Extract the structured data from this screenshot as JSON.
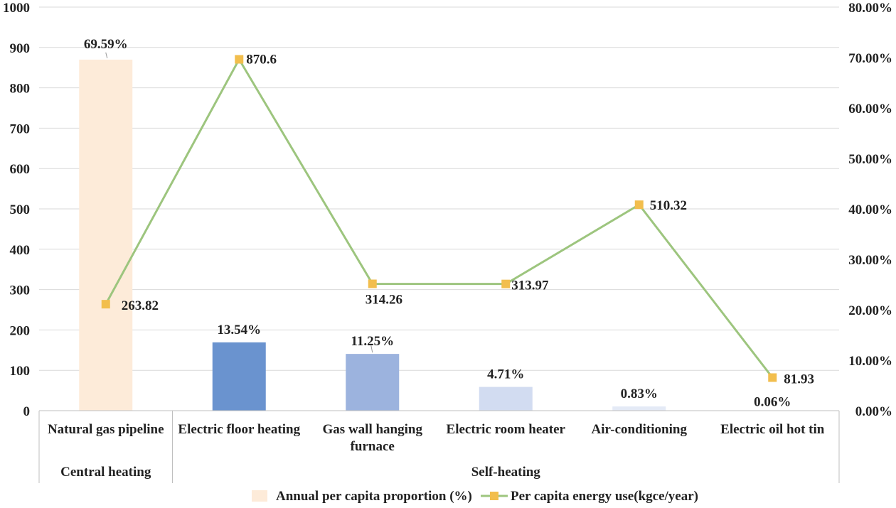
{
  "chart_data": {
    "type": "bar+line",
    "categories": [
      "Natural gas pipeline",
      "Electric floor heating",
      "Gas wall hanging furnace",
      "Electric room heater",
      "Air-conditioning",
      "Electric oil hot tin"
    ],
    "category_lines": [
      [
        "Natural gas pipeline"
      ],
      [
        "Electric floor heating"
      ],
      [
        "Gas wall hanging",
        "furnace"
      ],
      [
        "Electric room heater"
      ],
      [
        "Air-conditioning"
      ],
      [
        "Electric oil hot tin"
      ]
    ],
    "groups": [
      {
        "label": "Central heating",
        "span": [
          0,
          0
        ]
      },
      {
        "label": "Self-heating",
        "span": [
          1,
          5
        ]
      }
    ],
    "series": [
      {
        "name": "Annual per capita proportion (%)",
        "type": "bar",
        "axis": "right",
        "values": [
          69.59,
          13.54,
          11.25,
          4.71,
          0.83,
          0.06
        ],
        "labels": [
          "69.59%",
          "13.54%",
          "11.25%",
          "4.71%",
          "0.83%",
          "0.06%"
        ],
        "colors": [
          "#FDEBD9",
          "#6A93CF",
          "#9CB3DE",
          "#D2DCF1",
          "#E4EAF6",
          "#F1F4FA"
        ]
      },
      {
        "name": "Per capita energy use(kgce/year)",
        "type": "line",
        "axis": "left",
        "values": [
          263.82,
          870.6,
          314.26,
          313.97,
          510.32,
          81.93
        ],
        "labels": [
          "263.82",
          "870.6",
          "314.26",
          "313.97",
          "510.32",
          "81.93"
        ],
        "line_color": "#9DC57E",
        "marker_color": "#F2BE4D"
      }
    ],
    "y_left": {
      "min": 0,
      "max": 1000,
      "step": 100,
      "ticks": [
        "0",
        "100",
        "200",
        "300",
        "400",
        "500",
        "600",
        "700",
        "800",
        "900",
        "1000"
      ]
    },
    "y_right": {
      "min": 0,
      "max": 80,
      "step": 10,
      "ticks": [
        "0.00%",
        "10.00%",
        "20.00%",
        "30.00%",
        "40.00%",
        "50.00%",
        "60.00%",
        "70.00%",
        "80.00%"
      ]
    },
    "grid": true,
    "legend_position": "bottom"
  }
}
